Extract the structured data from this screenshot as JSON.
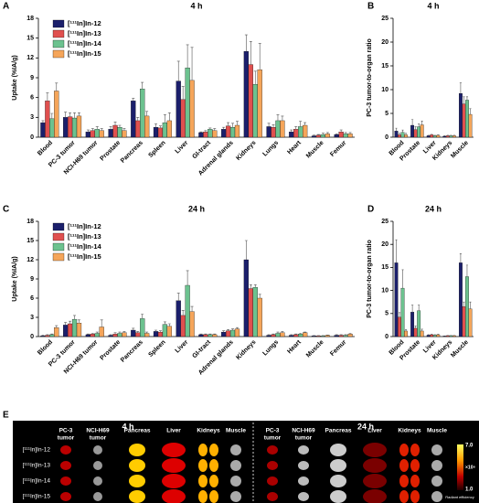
{
  "chart_data": [
    {
      "type": "bar",
      "panel": "A",
      "title": "4 h",
      "y_label": "Uptake (%IA/g)",
      "legend": "upper left",
      "categories": [
        "Blood",
        "PC-3 tumor",
        "NCI-H69 tumor",
        "Prostate",
        "Pancreas",
        "Spleen",
        "Liver",
        "GI-tract",
        "Adrenal glands",
        "Kidneys",
        "Lungs",
        "Heart",
        "Muscle",
        "Femur"
      ],
      "ylim": [
        0,
        18
      ],
      "yticks": [
        0,
        3,
        6,
        9,
        12,
        15,
        18
      ],
      "series": [
        {
          "name": "[¹¹¹In]In-12",
          "color": "#1b1f6b",
          "values": [
            2.2,
            3.0,
            0.8,
            1.2,
            5.5,
            1.5,
            8.5,
            0.7,
            1.2,
            13.0,
            1.6,
            0.8,
            0.2,
            0.4
          ],
          "errors": [
            0.3,
            0.8,
            0.3,
            0.4,
            0.4,
            0.5,
            3,
            0.1,
            0.3,
            2.5,
            0.5,
            0.3,
            0.1,
            0.1
          ]
        },
        {
          "name": "[¹¹¹In]In-13",
          "color": "#e0504f",
          "values": [
            5.5,
            3.1,
            1.0,
            1.8,
            2.5,
            1.4,
            5.7,
            0.8,
            1.7,
            11.0,
            1.5,
            1.2,
            0.3,
            0.8
          ],
          "errors": [
            1.2,
            0.6,
            0.3,
            0.5,
            0.5,
            0.3,
            2,
            0.2,
            0.5,
            3.5,
            0.4,
            0.4,
            0.1,
            0.3
          ]
        },
        {
          "name": "[¹¹¹In]In-14",
          "color": "#6cc28f",
          "values": [
            2.8,
            2.9,
            1.2,
            1.5,
            7.3,
            2.2,
            10.5,
            1.2,
            1.5,
            8.0,
            2.5,
            1.6,
            0.4,
            0.5
          ],
          "errors": [
            0.8,
            0.8,
            0.4,
            0.3,
            1,
            1.2,
            3.5,
            0.2,
            0.6,
            2,
            0.9,
            0.8,
            0.2,
            0.2
          ]
        },
        {
          "name": "[¹¹¹In]In-15",
          "color": "#f5a55a",
          "values": [
            7.0,
            3.2,
            1.0,
            1.0,
            3.2,
            2.5,
            8.6,
            1.0,
            1.8,
            10.2,
            2.5,
            1.8,
            0.5,
            0.5
          ],
          "errors": [
            1.2,
            0.5,
            0.3,
            0.3,
            0.7,
            1.2,
            5,
            0.3,
            0.6,
            4,
            0.7,
            0.4,
            0.2,
            0.2
          ]
        }
      ]
    },
    {
      "type": "bar",
      "panel": "B",
      "title": "4 h",
      "y_label": "PC-3 tumor-to-organ ratio",
      "categories": [
        "Blood",
        "Prostate",
        "Liver",
        "Kidneys",
        "Muscle"
      ],
      "ylim": [
        0,
        25
      ],
      "yticks": [
        0,
        5,
        10,
        15,
        20,
        25
      ],
      "series": [
        {
          "name": "[¹¹¹In]In-12",
          "color": "#1b1f6b",
          "values": [
            1.3,
            2.5,
            0.3,
            0.2,
            9.2
          ],
          "errors": [
            0.6,
            1.2,
            0.1,
            0.1,
            2.2
          ]
        },
        {
          "name": "[¹¹¹In]In-13",
          "color": "#e0504f",
          "values": [
            0.5,
            1.6,
            0.5,
            0.3,
            7.0
          ],
          "errors": [
            0.3,
            0.6,
            0.1,
            0.1,
            1.5
          ]
        },
        {
          "name": "[¹¹¹In]In-14",
          "color": "#6cc28f",
          "values": [
            1.0,
            2.2,
            0.3,
            0.3,
            7.8
          ],
          "errors": [
            0.5,
            0.6,
            0.1,
            0.1,
            0.7
          ]
        },
        {
          "name": "[¹¹¹In]In-15",
          "color": "#f5a55a",
          "values": [
            0.5,
            2.6,
            0.4,
            0.3,
            4.8
          ],
          "errors": [
            0.3,
            0.8,
            0.1,
            0.1,
            1.2
          ]
        }
      ]
    },
    {
      "type": "bar",
      "panel": "C",
      "title": "24 h",
      "y_label": "Uptake (%IA/g)",
      "legend": "upper left",
      "categories": [
        "Blood",
        "PC-3 tumor",
        "NCI-H69 tumor",
        "Prostate",
        "Pancreas",
        "Spleen",
        "Liver",
        "GI-tract",
        "Adrenal glands",
        "Kidneys",
        "Lungs",
        "Heart",
        "Muscle",
        "Femur"
      ],
      "ylim": [
        0,
        18
      ],
      "yticks": [
        0,
        3,
        6,
        9,
        12,
        15,
        18
      ],
      "series": [
        {
          "name": "[¹¹¹In]In-12",
          "color": "#1b1f6b",
          "values": [
            0.1,
            1.8,
            0.3,
            0.2,
            1.0,
            0.8,
            5.6,
            0.3,
            0.7,
            12.0,
            0.2,
            0.2,
            0.1,
            0.2
          ],
          "errors": [
            0.1,
            0.4,
            0.1,
            0.1,
            0.3,
            0.2,
            1.2,
            0.1,
            0.2,
            3,
            0.1,
            0.1,
            0.05,
            0.1
          ]
        },
        {
          "name": "[¹¹¹In]In-13",
          "color": "#e0504f",
          "values": [
            0.2,
            2.0,
            0.4,
            0.4,
            0.6,
            0.7,
            3.3,
            0.3,
            0.9,
            7.5,
            0.3,
            0.3,
            0.1,
            0.2
          ],
          "errors": [
            0.1,
            0.4,
            0.1,
            0.2,
            0.2,
            0.2,
            0.8,
            0.1,
            0.2,
            0.6,
            0.1,
            0.1,
            0.05,
            0.1
          ]
        },
        {
          "name": "[¹¹¹In]In-14",
          "color": "#6cc28f",
          "values": [
            0.3,
            2.7,
            0.5,
            0.5,
            2.8,
            1.9,
            8.0,
            0.3,
            1.0,
            7.7,
            0.5,
            0.4,
            0.1,
            0.2
          ],
          "errors": [
            0.1,
            0.6,
            0.2,
            0.2,
            0.7,
            0.4,
            2.3,
            0.1,
            0.2,
            0.4,
            0.2,
            0.1,
            0.05,
            0.1
          ]
        },
        {
          "name": "[¹¹¹In]In-15",
          "color": "#f5a55a",
          "values": [
            1.4,
            2.1,
            1.5,
            0.6,
            0.5,
            1.6,
            3.9,
            0.3,
            1.2,
            6.0,
            0.6,
            0.6,
            0.2,
            0.4
          ],
          "errors": [
            0.3,
            0.5,
            1.1,
            0.2,
            0.2,
            0.4,
            0.8,
            0.1,
            0.2,
            0.6,
            0.2,
            0.1,
            0.05,
            0.1
          ]
        }
      ]
    },
    {
      "type": "bar",
      "panel": "D",
      "title": "24 h",
      "y_label": "PC-3 tumor-to-organ ratio",
      "categories": [
        "Blood",
        "Prostate",
        "Liver",
        "Kidneys",
        "Muscle"
      ],
      "ylim": [
        0,
        25
      ],
      "yticks": [
        0,
        5,
        10,
        15,
        20,
        25
      ],
      "series": [
        {
          "name": "[¹¹¹In]In-12",
          "color": "#1b1f6b",
          "values": [
            16,
            5.3,
            0.3,
            0.1,
            16
          ],
          "errors": [
            5,
            1.5,
            0.1,
            0.05,
            2
          ]
        },
        {
          "name": "[¹¹¹In]In-13",
          "color": "#e0504f",
          "values": [
            4.2,
            1.8,
            0.4,
            0.2,
            6.5
          ],
          "errors": [
            1,
            0.5,
            0.1,
            0.05,
            1
          ]
        },
        {
          "name": "[¹¹¹In]In-14",
          "color": "#6cc28f",
          "values": [
            10.5,
            5.6,
            0.3,
            0.2,
            13
          ],
          "errors": [
            4,
            1.2,
            0.1,
            0.05,
            2.5
          ]
        },
        {
          "name": "[¹¹¹In]In-15",
          "color": "#f5a55a",
          "values": [
            1.2,
            1.2,
            0.4,
            0.2,
            6
          ],
          "errors": [
            0.3,
            0.4,
            0.1,
            0.05,
            1.5
          ]
        }
      ]
    }
  ],
  "panel_e": {
    "panel": "E",
    "groups": [
      {
        "title": "4 h",
        "columns": [
          [
            "PC-3",
            "tumor"
          ],
          [
            "NCI-H69",
            "tumor"
          ],
          [
            "Pancreas"
          ],
          [
            "Liver"
          ],
          [
            "Kidneys"
          ],
          [
            "Muscle"
          ]
        ]
      },
      {
        "title": "24 h",
        "columns": [
          [
            "PC-3",
            "tumor"
          ],
          [
            "NCI-H69",
            "tumor"
          ],
          [
            "Pancreas"
          ],
          [
            "Liver"
          ],
          [
            "Kidneys"
          ],
          [
            "Muscle"
          ]
        ]
      }
    ],
    "rows": [
      "[¹¹¹In]In-12",
      "[¹¹¹In]In-13",
      "[¹¹¹In]In-14",
      "[¹¹¹In]In-15"
    ],
    "colorbar": {
      "max": "7.0",
      "unit": "×10⁸",
      "min": "1.0",
      "label": "Radiant efficiency"
    }
  }
}
